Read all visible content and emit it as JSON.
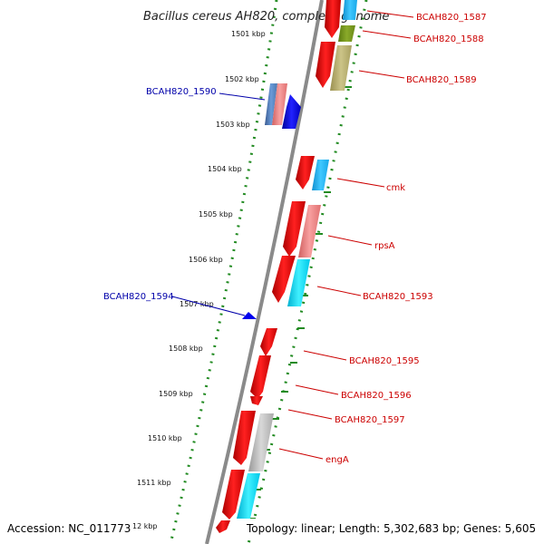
{
  "title": "Bacillus cereus AH820, complete genome",
  "kbp_ticks": [
    {
      "label": "1501 kbp"
    },
    {
      "label": "1502 kbp"
    },
    {
      "label": "1503 kbp"
    },
    {
      "label": "1504 kbp"
    },
    {
      "label": "1505 kbp"
    },
    {
      "label": "1506 kbp"
    },
    {
      "label": "1507 kbp"
    },
    {
      "label": "1508 kbp"
    },
    {
      "label": "1509 kbp"
    },
    {
      "label": "1510 kbp"
    },
    {
      "label": "1511 kbp"
    },
    {
      "label": "12 kbp"
    }
  ],
  "gene_labels": [
    {
      "text": "BCAH820_1587",
      "color": "#cc0000"
    },
    {
      "text": "BCAH820_1588",
      "color": "#cc0000"
    },
    {
      "text": "BCAH820_1589",
      "color": "#cc0000"
    },
    {
      "text": "BCAH820_1590",
      "color": "#0000aa"
    },
    {
      "text": "cmk",
      "color": "#cc0000"
    },
    {
      "text": "rpsA",
      "color": "#cc0000"
    },
    {
      "text": "BCAH820_1593",
      "color": "#cc0000"
    },
    {
      "text": "BCAH820_1594",
      "color": "#0000aa"
    },
    {
      "text": "BCAH820_1595",
      "color": "#cc0000"
    },
    {
      "text": "BCAH820_1596",
      "color": "#cc0000"
    },
    {
      "text": "BCAH820_1597",
      "color": "#cc0000"
    },
    {
      "text": "engA",
      "color": "#cc0000"
    }
  ],
  "footer": {
    "accession": "Accession: NC_011773",
    "topology": "Topology: linear; Length: 5,302,683 bp; Genes: 5,605"
  },
  "colors": {
    "forward_gene": "#ff0000",
    "reverse_gene": "#0000ee",
    "backbone": "#888888",
    "dotted_track": "#228b22",
    "cog_olive": "#7a9a1a",
    "cog_khaki": "#b8b070",
    "cog_pink": "#f08080",
    "cog_cyan": "#00d8f0",
    "cog_skyblue": "#20b0f0",
    "cog_steelblue": "#4a7ab8",
    "cog_gray": "#b8b8b8"
  }
}
